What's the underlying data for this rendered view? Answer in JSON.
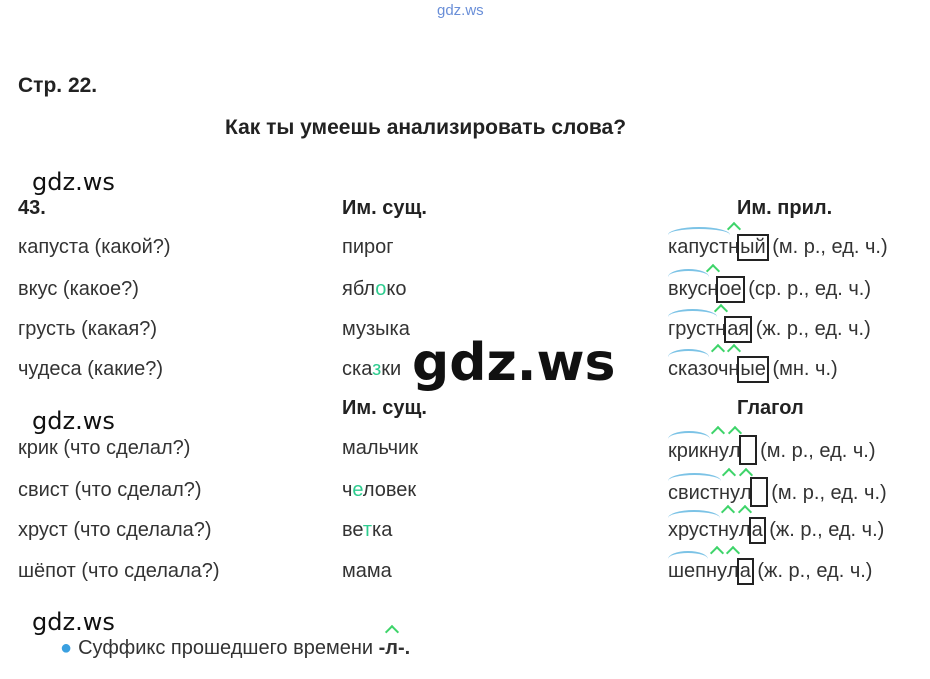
{
  "watermark_top": "gdz.ws",
  "watermark": "gdz.ws",
  "page_ref": "Стр. 22.",
  "title": "Как ты умеешь анализировать слова?",
  "exercise_number": "43.",
  "section1": {
    "header_noun": "Им. сущ.",
    "header_right": "Им. прил.",
    "rows": [
      {
        "left": "капуста (какой?)",
        "noun": [
          {
            "t": "пирог"
          }
        ],
        "word": [
          {
            "t": "капуст",
            "k": "root"
          },
          {
            "t": "н",
            "k": "suf"
          },
          {
            "t": "ый",
            "k": "end"
          }
        ],
        "note": " (м. р., ед. ч.)"
      },
      {
        "left": "вкус (какое?)",
        "noun": [
          {
            "t": "ябл"
          },
          {
            "t": "о",
            "hl": true
          },
          {
            "t": "ко"
          }
        ],
        "word": [
          {
            "t": "вкус",
            "k": "root"
          },
          {
            "t": "н",
            "k": "suf"
          },
          {
            "t": "ое",
            "k": "end"
          }
        ],
        "note": " (ср. р., ед. ч.)"
      },
      {
        "left": "грусть (какая?)",
        "noun": [
          {
            "t": "музыка"
          }
        ],
        "word": [
          {
            "t": "груст",
            "k": "root"
          },
          {
            "t": "н",
            "k": "suf"
          },
          {
            "t": "ая",
            "k": "end"
          }
        ],
        "note": " (ж. р., ед. ч.)"
      },
      {
        "left": "чудеса (какие?)",
        "noun": [
          {
            "t": "ска"
          },
          {
            "t": "з",
            "hl": true
          },
          {
            "t": "ки"
          }
        ],
        "word": [
          {
            "t": "сказ",
            "k": "root"
          },
          {
            "t": "оч",
            "k": "suf"
          },
          {
            "t": "н",
            "k": "suf"
          },
          {
            "t": "ые",
            "k": "end"
          }
        ],
        "note": " (мн. ч.)"
      }
    ]
  },
  "section2": {
    "header_noun": "Им. сущ.",
    "header_right": "Глагол",
    "rows": [
      {
        "left": "крик (что сделал?)",
        "noun": [
          {
            "t": "мальчик"
          }
        ],
        "word": [
          {
            "t": "крик",
            "k": "root"
          },
          {
            "t": "ну",
            "k": "suf"
          },
          {
            "t": "л",
            "k": "suf"
          },
          {
            "t": "",
            "k": "end"
          }
        ],
        "note": " (м. р., ед. ч.)"
      },
      {
        "left": "свист (что сделал?)",
        "noun": [
          {
            "t": "ч"
          },
          {
            "t": "е",
            "hl": true
          },
          {
            "t": "ловек"
          }
        ],
        "word": [
          {
            "t": "свист",
            "k": "root"
          },
          {
            "t": "ну",
            "k": "suf"
          },
          {
            "t": "л",
            "k": "suf"
          },
          {
            "t": "",
            "k": "end"
          }
        ],
        "note": " (м. р., ед. ч.)"
      },
      {
        "left": "хруст (что сделала?)",
        "noun": [
          {
            "t": "ве"
          },
          {
            "t": "т",
            "hl": true
          },
          {
            "t": "ка"
          }
        ],
        "word": [
          {
            "t": "хруст",
            "k": "root"
          },
          {
            "t": "ну",
            "k": "suf"
          },
          {
            "t": "л",
            "k": "suf"
          },
          {
            "t": "а",
            "k": "end"
          }
        ],
        "note": " (ж. р., ед. ч.)"
      },
      {
        "left": "шёпот (что сделала?)",
        "noun": [
          {
            "t": "мама"
          }
        ],
        "word": [
          {
            "t": "шеп",
            "k": "root"
          },
          {
            "t": "ну",
            "k": "suf"
          },
          {
            "t": "л",
            "k": "suf"
          },
          {
            "t": "а",
            "k": "end"
          }
        ],
        "note": " (ж. р., ед. ч.)"
      }
    ]
  },
  "footnote": {
    "text": "Суффикс прошедшего времени ",
    "suffix": "-л-",
    "tail": "."
  },
  "colors": {
    "root_arc": "#7cc3e6",
    "suffix_mark": "#3ed46a",
    "highlight": "#2ecc8f",
    "bullet": "#3aa0e0"
  }
}
